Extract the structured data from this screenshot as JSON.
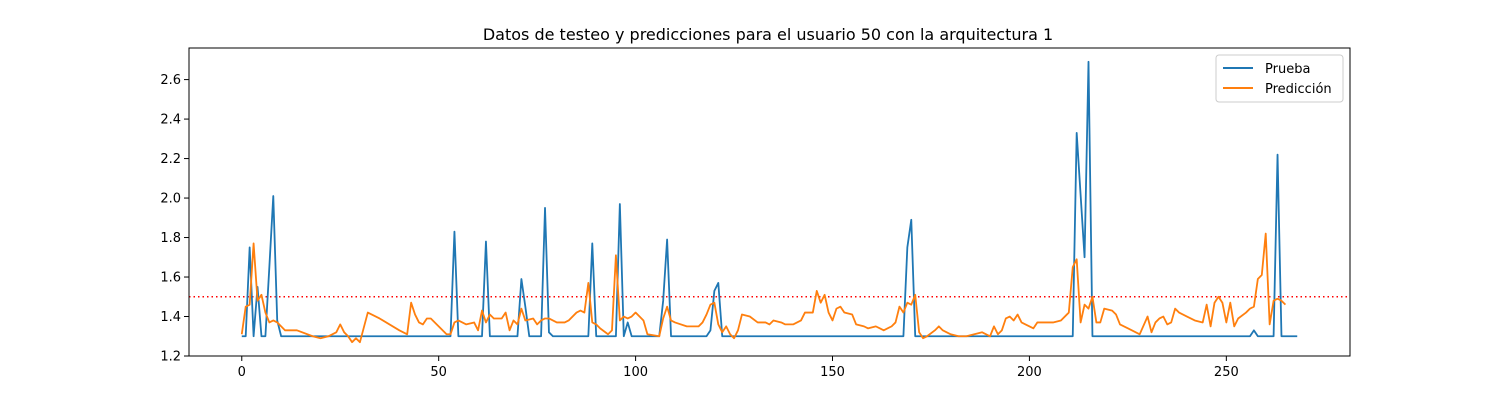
{
  "chart_data": {
    "type": "line",
    "title": "Datos de testeo y predicciones para el usuario 50 con la arquitectura 1",
    "xlabel": "",
    "ylabel": "",
    "xlim": [
      -13.4,
      281.4
    ],
    "ylim": [
      1.2,
      2.76
    ],
    "xticks": [
      0,
      50,
      100,
      150,
      200,
      250
    ],
    "yticks": [
      1.2,
      1.4,
      1.6,
      1.8,
      2.0,
      2.2,
      2.4,
      2.6
    ],
    "ytick_labels": [
      "1.2",
      "1.4",
      "1.6",
      "1.8",
      "2.0",
      "2.2",
      "2.4",
      "2.6"
    ],
    "grid": false,
    "legend_position": "top-right",
    "threshold": {
      "y": 1.5,
      "color": "#ff0000",
      "style": "dotted"
    },
    "series": [
      {
        "name": "Prueba",
        "color": "#1f77b4",
        "points": [
          [
            0,
            1.3
          ],
          [
            1,
            1.3
          ],
          [
            2,
            1.75
          ],
          [
            3,
            1.3
          ],
          [
            4,
            1.55
          ],
          [
            5,
            1.3
          ],
          [
            6,
            1.3
          ],
          [
            7,
            1.65
          ],
          [
            8,
            2.01
          ],
          [
            9,
            1.38
          ],
          [
            10,
            1.3
          ],
          [
            53,
            1.3
          ],
          [
            54,
            1.83
          ],
          [
            55,
            1.3
          ],
          [
            61,
            1.3
          ],
          [
            62,
            1.78
          ],
          [
            63,
            1.3
          ],
          [
            70,
            1.3
          ],
          [
            71,
            1.59
          ],
          [
            72,
            1.45
          ],
          [
            73,
            1.3
          ],
          [
            76,
            1.3
          ],
          [
            77,
            1.95
          ],
          [
            78,
            1.32
          ],
          [
            79,
            1.3
          ],
          [
            88,
            1.3
          ],
          [
            89,
            1.77
          ],
          [
            90,
            1.3
          ],
          [
            95,
            1.3
          ],
          [
            96,
            1.97
          ],
          [
            97,
            1.3
          ],
          [
            98,
            1.37
          ],
          [
            99,
            1.3
          ],
          [
            106,
            1.3
          ],
          [
            107,
            1.48
          ],
          [
            108,
            1.79
          ],
          [
            109,
            1.3
          ],
          [
            118,
            1.3
          ],
          [
            119,
            1.33
          ],
          [
            120,
            1.53
          ],
          [
            121,
            1.57
          ],
          [
            122,
            1.3
          ],
          [
            168,
            1.3
          ],
          [
            169,
            1.75
          ],
          [
            170,
            1.89
          ],
          [
            171,
            1.3
          ],
          [
            211,
            1.3
          ],
          [
            212,
            2.33
          ],
          [
            214,
            1.7
          ],
          [
            215,
            2.69
          ],
          [
            216,
            1.3
          ],
          [
            256,
            1.3
          ],
          [
            257,
            1.33
          ],
          [
            258,
            1.3
          ],
          [
            262,
            1.3
          ],
          [
            263,
            2.22
          ],
          [
            264,
            1.3
          ],
          [
            268,
            1.3
          ]
        ]
      },
      {
        "name": "Predicción",
        "color": "#ff7f0e",
        "points": [
          [
            0,
            1.31
          ],
          [
            1,
            1.45
          ],
          [
            2,
            1.46
          ],
          [
            3,
            1.77
          ],
          [
            4,
            1.48
          ],
          [
            5,
            1.51
          ],
          [
            6,
            1.42
          ],
          [
            7,
            1.37
          ],
          [
            8,
            1.38
          ],
          [
            9,
            1.37
          ],
          [
            10,
            1.35
          ],
          [
            11,
            1.33
          ],
          [
            14,
            1.33
          ],
          [
            18,
            1.3
          ],
          [
            20,
            1.29
          ],
          [
            22,
            1.3
          ],
          [
            24,
            1.32
          ],
          [
            25,
            1.36
          ],
          [
            26,
            1.32
          ],
          [
            27,
            1.3
          ],
          [
            28,
            1.27
          ],
          [
            29,
            1.29
          ],
          [
            30,
            1.27
          ],
          [
            32,
            1.42
          ],
          [
            35,
            1.39
          ],
          [
            40,
            1.33
          ],
          [
            42,
            1.31
          ],
          [
            43,
            1.47
          ],
          [
            44,
            1.41
          ],
          [
            45,
            1.37
          ],
          [
            46,
            1.36
          ],
          [
            47,
            1.39
          ],
          [
            48,
            1.39
          ],
          [
            50,
            1.35
          ],
          [
            52,
            1.31
          ],
          [
            53,
            1.31
          ],
          [
            54,
            1.37
          ],
          [
            55,
            1.38
          ],
          [
            57,
            1.36
          ],
          [
            59,
            1.37
          ],
          [
            60,
            1.33
          ],
          [
            61,
            1.43
          ],
          [
            62,
            1.37
          ],
          [
            63,
            1.41
          ],
          [
            64,
            1.39
          ],
          [
            66,
            1.39
          ],
          [
            67,
            1.42
          ],
          [
            68,
            1.33
          ],
          [
            69,
            1.38
          ],
          [
            70,
            1.36
          ],
          [
            71,
            1.44
          ],
          [
            72,
            1.38
          ],
          [
            74,
            1.39
          ],
          [
            75,
            1.36
          ],
          [
            76,
            1.38
          ],
          [
            77,
            1.39
          ],
          [
            78,
            1.39
          ],
          [
            80,
            1.37
          ],
          [
            82,
            1.37
          ],
          [
            83,
            1.38
          ],
          [
            85,
            1.42
          ],
          [
            86,
            1.43
          ],
          [
            87,
            1.42
          ],
          [
            88,
            1.57
          ],
          [
            89,
            1.37
          ],
          [
            90,
            1.36
          ],
          [
            91,
            1.34
          ],
          [
            93,
            1.31
          ],
          [
            94,
            1.33
          ],
          [
            95,
            1.71
          ],
          [
            96,
            1.38
          ],
          [
            97,
            1.4
          ],
          [
            98,
            1.39
          ],
          [
            99,
            1.4
          ],
          [
            100,
            1.42
          ],
          [
            101,
            1.4
          ],
          [
            102,
            1.38
          ],
          [
            103,
            1.31
          ],
          [
            106,
            1.3
          ],
          [
            107,
            1.39
          ],
          [
            108,
            1.45
          ],
          [
            109,
            1.38
          ],
          [
            110,
            1.37
          ],
          [
            113,
            1.35
          ],
          [
            116,
            1.35
          ],
          [
            117,
            1.37
          ],
          [
            118,
            1.41
          ],
          [
            119,
            1.46
          ],
          [
            120,
            1.47
          ],
          [
            121,
            1.36
          ],
          [
            122,
            1.32
          ],
          [
            123,
            1.35
          ],
          [
            124,
            1.31
          ],
          [
            125,
            1.29
          ],
          [
            126,
            1.33
          ],
          [
            127,
            1.41
          ],
          [
            129,
            1.4
          ],
          [
            131,
            1.37
          ],
          [
            133,
            1.37
          ],
          [
            134,
            1.36
          ],
          [
            135,
            1.38
          ],
          [
            137,
            1.37
          ],
          [
            138,
            1.36
          ],
          [
            140,
            1.36
          ],
          [
            142,
            1.38
          ],
          [
            143,
            1.42
          ],
          [
            145,
            1.42
          ],
          [
            146,
            1.53
          ],
          [
            147,
            1.47
          ],
          [
            148,
            1.51
          ],
          [
            149,
            1.42
          ],
          [
            150,
            1.38
          ],
          [
            151,
            1.44
          ],
          [
            152,
            1.45
          ],
          [
            153,
            1.42
          ],
          [
            155,
            1.41
          ],
          [
            156,
            1.36
          ],
          [
            158,
            1.35
          ],
          [
            159,
            1.34
          ],
          [
            161,
            1.35
          ],
          [
            162,
            1.34
          ],
          [
            163,
            1.33
          ],
          [
            165,
            1.35
          ],
          [
            166,
            1.37
          ],
          [
            167,
            1.45
          ],
          [
            168,
            1.42
          ],
          [
            169,
            1.47
          ],
          [
            170,
            1.46
          ],
          [
            171,
            1.51
          ],
          [
            172,
            1.32
          ],
          [
            173,
            1.29
          ],
          [
            174,
            1.3
          ],
          [
            176,
            1.33
          ],
          [
            177,
            1.35
          ],
          [
            178,
            1.33
          ],
          [
            180,
            1.31
          ],
          [
            182,
            1.3
          ],
          [
            184,
            1.3
          ],
          [
            186,
            1.31
          ],
          [
            188,
            1.32
          ],
          [
            190,
            1.3
          ],
          [
            191,
            1.35
          ],
          [
            192,
            1.31
          ],
          [
            193,
            1.33
          ],
          [
            194,
            1.39
          ],
          [
            195,
            1.4
          ],
          [
            196,
            1.38
          ],
          [
            197,
            1.41
          ],
          [
            198,
            1.37
          ],
          [
            199,
            1.36
          ],
          [
            201,
            1.34
          ],
          [
            202,
            1.37
          ],
          [
            204,
            1.37
          ],
          [
            206,
            1.37
          ],
          [
            208,
            1.38
          ],
          [
            210,
            1.42
          ],
          [
            211,
            1.65
          ],
          [
            212,
            1.69
          ],
          [
            213,
            1.37
          ],
          [
            214,
            1.46
          ],
          [
            215,
            1.44
          ],
          [
            216,
            1.5
          ],
          [
            217,
            1.37
          ],
          [
            218,
            1.37
          ],
          [
            219,
            1.44
          ],
          [
            221,
            1.43
          ],
          [
            222,
            1.41
          ],
          [
            223,
            1.36
          ],
          [
            225,
            1.34
          ],
          [
            226,
            1.33
          ],
          [
            228,
            1.31
          ],
          [
            230,
            1.4
          ],
          [
            231,
            1.32
          ],
          [
            232,
            1.37
          ],
          [
            233,
            1.39
          ],
          [
            234,
            1.4
          ],
          [
            235,
            1.36
          ],
          [
            236,
            1.37
          ],
          [
            237,
            1.44
          ],
          [
            238,
            1.42
          ],
          [
            240,
            1.4
          ],
          [
            242,
            1.38
          ],
          [
            244,
            1.37
          ],
          [
            245,
            1.46
          ],
          [
            246,
            1.35
          ],
          [
            247,
            1.47
          ],
          [
            248,
            1.5
          ],
          [
            249,
            1.47
          ],
          [
            250,
            1.37
          ],
          [
            251,
            1.47
          ],
          [
            252,
            1.35
          ],
          [
            253,
            1.39
          ],
          [
            255,
            1.42
          ],
          [
            256,
            1.44
          ],
          [
            257,
            1.45
          ],
          [
            258,
            1.59
          ],
          [
            259,
            1.61
          ],
          [
            260,
            1.82
          ],
          [
            261,
            1.36
          ],
          [
            262,
            1.48
          ],
          [
            263,
            1.49
          ],
          [
            264,
            1.48
          ],
          [
            265,
            1.46
          ]
        ]
      }
    ]
  }
}
